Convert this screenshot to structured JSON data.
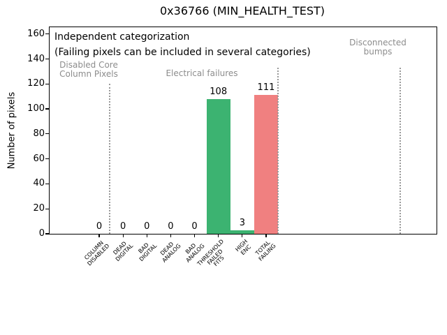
{
  "title": "0x36766 (MIN_HEALTH_TEST)",
  "annotations": {
    "note": "Independent categorization\n(Failing pixels can be included in several categories)",
    "group_disabled": "Disabled Core\nColumn Pixels",
    "group_electrical": "Electrical failures",
    "group_disconnected": "Disconnected\nbumps"
  },
  "colors": {
    "bar_green": "#3cb371",
    "bar_red": "#f08080",
    "annotation_gray": "#8c8c8c",
    "separator_gray": "#999999",
    "axis_black": "#000000",
    "background": "#ffffff"
  },
  "chart_data": {
    "type": "bar",
    "title": "0x36766 (MIN_HEALTH_TEST)",
    "xlabel": "",
    "ylabel": "Number of pixels",
    "categories": [
      "COLUMN\nDISABLED",
      "DEAD\nDIGITAL",
      "BAD\nDIGITAL",
      "DEAD\nANALOG",
      "BAD\nANALOG",
      "THRESHOLD\nFAILED\nFITS",
      "HIGH\nENC",
      "TOTAL\nFAILING"
    ],
    "values": [
      0,
      0,
      0,
      0,
      0,
      108,
      3,
      111
    ],
    "value_labels": [
      "0",
      "0",
      "0",
      "0",
      "0",
      "108",
      "3",
      "111"
    ],
    "bar_colors": [
      "#3cb371",
      "#3cb371",
      "#3cb371",
      "#3cb371",
      "#3cb371",
      "#3cb371",
      "#3cb371",
      "#f08080"
    ],
    "yticks": [
      0,
      20,
      40,
      60,
      80,
      100,
      120,
      140,
      160
    ],
    "ylim": [
      0,
      166
    ],
    "grid": false,
    "legend_position": "none",
    "x_tick_rotation": 45,
    "bar_width_fraction": 1.0,
    "group_separators": [
      {
        "at_index": 0.44,
        "top_value": 120
      },
      {
        "at_index": 7.51,
        "top_value": 133
      },
      {
        "at_index": 12.62,
        "top_value": 133
      }
    ]
  }
}
